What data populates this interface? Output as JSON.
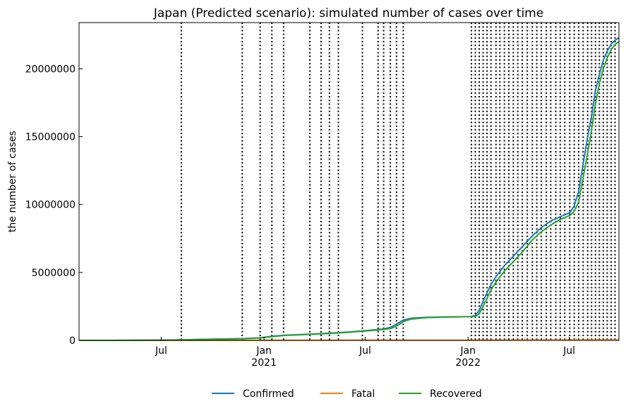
{
  "chart_data": {
    "type": "line",
    "title": "Japan (Predicted scenario): simulated number of cases over time",
    "xlabel": "",
    "ylabel": "the number of cases",
    "xlim": [
      "2020-02-05",
      "2022-09-28"
    ],
    "ylim": [
      0,
      23400000
    ],
    "grid": false,
    "legend_position": "bottom-center",
    "y_ticks": [
      0,
      5000000,
      10000000,
      15000000,
      20000000
    ],
    "y_tick_labels": [
      "0",
      "5000000",
      "10000000",
      "15000000",
      "20000000"
    ],
    "x_ticks": [
      {
        "date": "2020-07-01",
        "label": "Jul",
        "sublabel": ""
      },
      {
        "date": "2021-01-01",
        "label": "Jan",
        "sublabel": "2021"
      },
      {
        "date": "2021-07-01",
        "label": "Jul",
        "sublabel": ""
      },
      {
        "date": "2022-01-01",
        "label": "Jan",
        "sublabel": "2022"
      },
      {
        "date": "2022-07-01",
        "label": "Jul",
        "sublabel": ""
      }
    ],
    "change_dates": [
      "2020-08-06",
      "2020-11-23",
      "2020-12-25",
      "2021-01-15",
      "2021-02-05",
      "2021-03-24",
      "2021-04-13",
      "2021-04-28",
      "2021-05-14",
      "2021-06-26",
      "2021-07-24",
      "2021-08-03",
      "2021-08-15",
      "2021-08-26",
      "2021-09-07",
      "2022-01-07",
      "2022-01-14",
      "2022-01-21",
      "2022-01-28",
      "2022-02-04",
      "2022-02-11",
      "2022-02-20",
      "2022-02-27",
      "2022-03-07",
      "2022-03-15",
      "2022-03-23",
      "2022-03-31",
      "2022-04-08",
      "2022-04-17",
      "2022-04-26",
      "2022-05-04",
      "2022-05-12",
      "2022-05-21",
      "2022-05-29",
      "2022-06-07",
      "2022-06-15",
      "2022-06-23",
      "2022-07-02",
      "2022-07-10",
      "2022-07-18",
      "2022-07-26",
      "2022-08-03",
      "2022-08-10",
      "2022-08-17",
      "2022-08-24",
      "2022-08-31",
      "2022-09-07",
      "2022-09-14",
      "2022-09-21"
    ],
    "series": [
      {
        "name": "Confirmed",
        "color": "#1f77b4",
        "points": [
          [
            "2020-02-05",
            0
          ],
          [
            "2020-04-01",
            2000
          ],
          [
            "2020-07-01",
            20000
          ],
          [
            "2020-08-06",
            40000
          ],
          [
            "2020-10-01",
            90000
          ],
          [
            "2020-11-23",
            130000
          ],
          [
            "2020-12-25",
            200000
          ],
          [
            "2021-01-15",
            300000
          ],
          [
            "2021-02-05",
            380000
          ],
          [
            "2021-03-24",
            460000
          ],
          [
            "2021-04-28",
            530000
          ],
          [
            "2021-06-01",
            620000
          ],
          [
            "2021-07-01",
            720000
          ],
          [
            "2021-08-01",
            830000
          ],
          [
            "2021-08-15",
            950000
          ],
          [
            "2021-08-26",
            1200000
          ],
          [
            "2021-09-07",
            1500000
          ],
          [
            "2021-09-20",
            1620000
          ],
          [
            "2021-10-20",
            1700000
          ],
          [
            "2021-12-01",
            1730000
          ],
          [
            "2022-01-07",
            1760000
          ],
          [
            "2022-01-14",
            1850000
          ],
          [
            "2022-01-21",
            2200000
          ],
          [
            "2022-01-28",
            2900000
          ],
          [
            "2022-02-04",
            3500000
          ],
          [
            "2022-02-11",
            4100000
          ],
          [
            "2022-02-20",
            4700000
          ],
          [
            "2022-03-07",
            5500000
          ],
          [
            "2022-03-23",
            6200000
          ],
          [
            "2022-04-08",
            6900000
          ],
          [
            "2022-04-26",
            7700000
          ],
          [
            "2022-05-12",
            8300000
          ],
          [
            "2022-05-29",
            8800000
          ],
          [
            "2022-06-15",
            9100000
          ],
          [
            "2022-07-02",
            9400000
          ],
          [
            "2022-07-10",
            9900000
          ],
          [
            "2022-07-18",
            11000000
          ],
          [
            "2022-07-26",
            13000000
          ],
          [
            "2022-08-03",
            15000000
          ],
          [
            "2022-08-10",
            16500000
          ],
          [
            "2022-08-17",
            18400000
          ],
          [
            "2022-08-24",
            19600000
          ],
          [
            "2022-08-31",
            20600000
          ],
          [
            "2022-09-07",
            21300000
          ],
          [
            "2022-09-14",
            21800000
          ],
          [
            "2022-09-21",
            22100000
          ],
          [
            "2022-09-28",
            22300000
          ]
        ]
      },
      {
        "name": "Fatal",
        "color": "#ff7f0e",
        "points": [
          [
            "2020-02-05",
            0
          ],
          [
            "2020-07-01",
            1000
          ],
          [
            "2021-01-15",
            4000
          ],
          [
            "2021-07-01",
            15000
          ],
          [
            "2022-01-07",
            18000
          ],
          [
            "2022-07-01",
            31000
          ],
          [
            "2022-09-28",
            42000
          ]
        ]
      },
      {
        "name": "Recovered",
        "color": "#2ca02c",
        "points": [
          [
            "2020-02-05",
            0
          ],
          [
            "2020-04-01",
            1500
          ],
          [
            "2020-07-01",
            17000
          ],
          [
            "2020-08-06",
            35000
          ],
          [
            "2020-10-01",
            82000
          ],
          [
            "2020-11-23",
            120000
          ],
          [
            "2020-12-25",
            180000
          ],
          [
            "2021-01-15",
            270000
          ],
          [
            "2021-02-05",
            360000
          ],
          [
            "2021-03-24",
            440000
          ],
          [
            "2021-04-28",
            510000
          ],
          [
            "2021-06-01",
            595000
          ],
          [
            "2021-07-01",
            690000
          ],
          [
            "2021-08-01",
            790000
          ],
          [
            "2021-08-15",
            870000
          ],
          [
            "2021-08-26",
            1050000
          ],
          [
            "2021-09-07",
            1380000
          ],
          [
            "2021-09-20",
            1560000
          ],
          [
            "2021-10-20",
            1680000
          ],
          [
            "2021-12-01",
            1720000
          ],
          [
            "2022-01-07",
            1745000
          ],
          [
            "2022-01-14",
            1770000
          ],
          [
            "2022-01-21",
            1950000
          ],
          [
            "2022-01-28",
            2500000
          ],
          [
            "2022-02-04",
            3100000
          ],
          [
            "2022-02-11",
            3700000
          ],
          [
            "2022-02-20",
            4300000
          ],
          [
            "2022-03-07",
            5100000
          ],
          [
            "2022-03-23",
            5800000
          ],
          [
            "2022-04-08",
            6500000
          ],
          [
            "2022-04-26",
            7400000
          ],
          [
            "2022-05-12",
            8000000
          ],
          [
            "2022-05-29",
            8500000
          ],
          [
            "2022-06-15",
            8900000
          ],
          [
            "2022-07-02",
            9200000
          ],
          [
            "2022-07-10",
            9500000
          ],
          [
            "2022-07-18",
            10200000
          ],
          [
            "2022-07-26",
            12000000
          ],
          [
            "2022-08-03",
            13800000
          ],
          [
            "2022-08-10",
            15500000
          ],
          [
            "2022-08-17",
            17400000
          ],
          [
            "2022-08-24",
            18900000
          ],
          [
            "2022-08-31",
            20000000
          ],
          [
            "2022-09-07",
            20800000
          ],
          [
            "2022-09-14",
            21400000
          ],
          [
            "2022-09-21",
            21800000
          ],
          [
            "2022-09-28",
            22000000
          ]
        ]
      }
    ]
  }
}
